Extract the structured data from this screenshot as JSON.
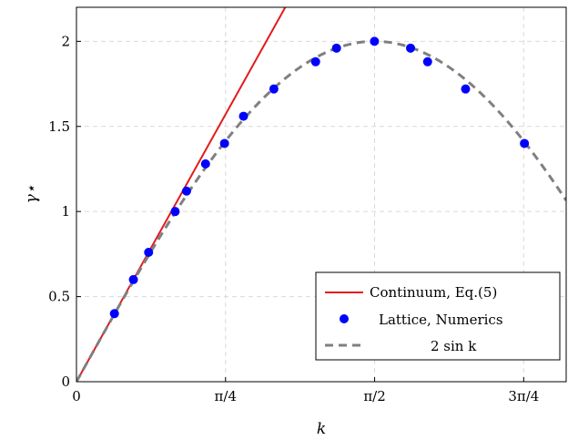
{
  "chart_data": {
    "type": "line",
    "xlabel": "k",
    "ylabel": "γ⋆",
    "xlim": [
      0,
      2.58
    ],
    "ylim": [
      0,
      2.2
    ],
    "grid": true,
    "legend_position": "bottom-right",
    "x_ticks": [
      {
        "value": 0,
        "label": "0"
      },
      {
        "value": 0.7854,
        "label": "π/4"
      },
      {
        "value": 1.5708,
        "label": "π/2"
      },
      {
        "value": 2.3562,
        "label": "3π/4"
      }
    ],
    "y_ticks": [
      {
        "value": 0,
        "label": "0"
      },
      {
        "value": 0.5,
        "label": "0.5"
      },
      {
        "value": 1,
        "label": "1"
      },
      {
        "value": 1.5,
        "label": "1.5"
      },
      {
        "value": 2,
        "label": "2"
      }
    ],
    "series": [
      {
        "name": "Continuum, Eq.(5)",
        "kind": "line",
        "color": "#e41a1c",
        "style": "solid",
        "x": [
          0,
          1.1
        ],
        "y": [
          0,
          2.2
        ]
      },
      {
        "name": "Lattice, Numerics",
        "kind": "scatter",
        "color": "#0000ff",
        "x": [
          0.2,
          0.3,
          0.38,
          0.52,
          0.58,
          0.68,
          0.78,
          0.88,
          1.04,
          1.26,
          1.37,
          1.57,
          1.76,
          1.85,
          2.05,
          2.36
        ],
        "y": [
          0.4,
          0.6,
          0.76,
          1.0,
          1.12,
          1.28,
          1.4,
          1.56,
          1.72,
          1.88,
          1.96,
          2.0,
          1.96,
          1.88,
          1.72,
          1.4
        ]
      },
      {
        "name": "2 sin k",
        "kind": "function",
        "function": "2*sin(k)",
        "color": "#808080",
        "style": "dashed"
      }
    ]
  }
}
